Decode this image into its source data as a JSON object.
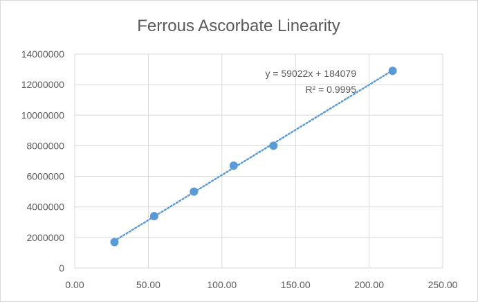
{
  "chart_data": {
    "type": "scatter",
    "title": "Ferrous Ascorbate Linearity",
    "xlabel": "",
    "ylabel": "",
    "xlim": [
      0,
      250
    ],
    "ylim": [
      0,
      14000000
    ],
    "x_ticks": [
      "0.00",
      "50.00",
      "100.00",
      "150.00",
      "200.00",
      "250.00"
    ],
    "y_ticks": [
      "0",
      "2000000",
      "4000000",
      "6000000",
      "8000000",
      "10000000",
      "12000000",
      "14000000"
    ],
    "grid": true,
    "legend": "none",
    "series": [
      {
        "x": [
          27,
          54,
          81,
          108,
          135,
          216
        ],
        "y": [
          1700000,
          3400000,
          5000000,
          6700000,
          8000000,
          12900000
        ],
        "color": "#5b9bd5"
      }
    ],
    "trendline": {
      "type": "linear",
      "slope": 59022,
      "intercept": 184079,
      "style": "dotted",
      "color": "#5b9bd5",
      "equation_label": "y = 59022x + 184079",
      "r2_label": "R² = 0.9995"
    }
  }
}
